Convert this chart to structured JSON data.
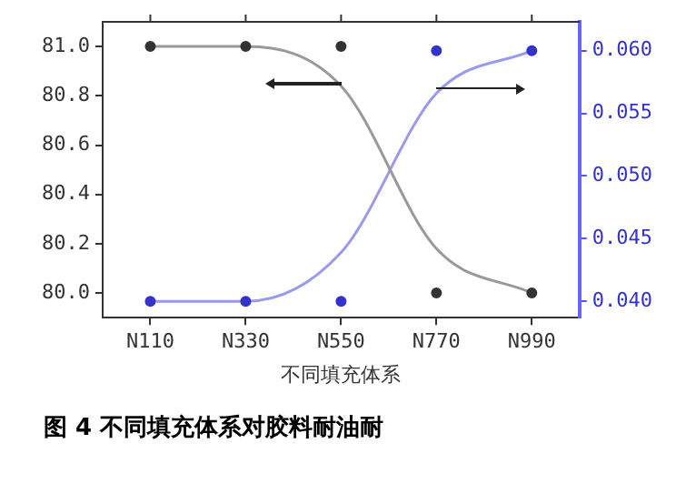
{
  "chart_data": {
    "type": "scatter",
    "title": "图 4 不同填充体系对胶料耐油耐",
    "xlabel": "不同填充体系",
    "categories": [
      "N110",
      "N330",
      "N550",
      "N770",
      "N990"
    ],
    "ylim": [
      79.9,
      81.1
    ],
    "yticks": [
      {
        "value": 80,
        "label": "80.0"
      },
      {
        "value": 80.2,
        "label": "80.2"
      },
      {
        "value": 80.4,
        "label": "80.4"
      },
      {
        "value": 80.6,
        "label": "80.6"
      },
      {
        "value": 80.8,
        "label": "80.8"
      },
      {
        "value": 81,
        "label": "81.0"
      }
    ],
    "y2lim": [
      0.0387,
      0.0623
    ],
    "y2ticks": [
      {
        "value": 0.04,
        "label": "0.040"
      },
      {
        "value": 0.045,
        "label": "0.045"
      },
      {
        "value": 0.05,
        "label": "0.050"
      },
      {
        "value": 0.055,
        "label": "0.055"
      },
      {
        "value": 0.06,
        "label": "0.060"
      }
    ],
    "grid": false,
    "legend": false,
    "marker": "circle",
    "series": [
      {
        "color": "#333333",
        "values": [
          81.0,
          81.0,
          81.0,
          80.0,
          80.0
        ]
      },
      {
        "axis": "y2",
        "color": "#3333cc",
        "values": [
          0.04,
          0.04,
          0.04,
          0.06,
          0.06
        ]
      },
      {
        "type": "line",
        "marker": "none",
        "color": "#999999",
        "values": [
          81.0,
          81.0,
          80.84,
          80.18,
          80.0
        ]
      },
      {
        "type": "line",
        "marker": "none",
        "axis": "y2",
        "color": "#9999ee",
        "values": [
          0.04,
          0.04,
          0.0439,
          0.0566,
          0.06
        ]
      }
    ]
  }
}
